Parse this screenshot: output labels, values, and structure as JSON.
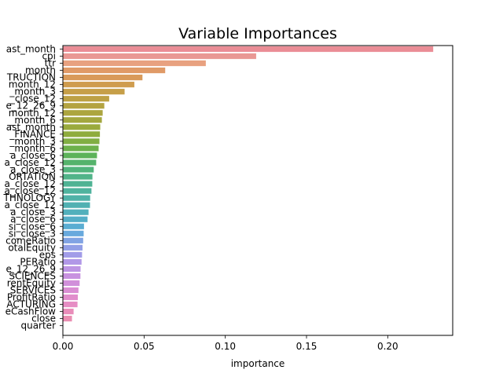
{
  "chart_data": {
    "type": "bar",
    "orientation": "horizontal",
    "title": "Variable Importances",
    "xlabel": "importance",
    "ylabel": "",
    "xlim": [
      0,
      0.24
    ],
    "xticks": [
      0.0,
      0.05,
      0.1,
      0.15,
      0.2
    ],
    "xtick_labels": [
      "0.00",
      "0.05",
      "0.10",
      "0.15",
      "0.20"
    ],
    "grid": false,
    "categories": [
      "ast_month",
      "cpi",
      "ttr",
      "month",
      "TRUCTION",
      "month_12",
      "_month_3",
      "_close_12",
      "e_12_26_9",
      "month_12",
      "_month_6",
      "ast_month",
      "_FINANCE",
      "_month_3",
      "_month_6",
      "a_close_6",
      "a_close_12",
      "a_close_3",
      "ORTATION",
      "a_close_12",
      "a_close_12",
      "THNOLOGY",
      "a_close_12",
      "a_close_3",
      "a_close_6",
      "si_close_6",
      "si_close_3",
      "comeRatio",
      "otalEquity",
      "eps",
      "PERatio",
      "e_12_26_9",
      "SCIENCES",
      "rentEquity",
      "SERVICES",
      "ProfitRatio",
      "ACTURING",
      "eCashFlow",
      "close",
      "quarter"
    ],
    "values": [
      0.228,
      0.119,
      0.088,
      0.063,
      0.049,
      0.044,
      0.038,
      0.0285,
      0.0255,
      0.0245,
      0.024,
      0.023,
      0.0228,
      0.0225,
      0.022,
      0.021,
      0.0205,
      0.019,
      0.0182,
      0.0181,
      0.0176,
      0.0168,
      0.0167,
      0.0158,
      0.0152,
      0.013,
      0.0128,
      0.0125,
      0.0121,
      0.0118,
      0.0115,
      0.0109,
      0.0108,
      0.0103,
      0.0096,
      0.0092,
      0.009,
      0.0066,
      0.0056,
      0.0
    ],
    "colors": [
      "#ea8d96",
      "#e99894",
      "#e8a180",
      "#e09a67",
      "#d99a5a",
      "#cf9c4e",
      "#c69f48",
      "#bda144",
      "#b4a341",
      "#aca53f",
      "#a3a73e",
      "#9aaa3d",
      "#8fac3d",
      "#81ae43",
      "#6db14c",
      "#5db35a",
      "#55b36c",
      "#52b47c",
      "#51b489",
      "#4fb394",
      "#4fb39e",
      "#50b2a8",
      "#51b1b2",
      "#52b0bc",
      "#55aec7",
      "#5aadd2",
      "#68a9dd",
      "#80a3e3",
      "#929fe6",
      "#a29ce8",
      "#b198e7",
      "#bd95e4",
      "#c892e0",
      "#d190da",
      "#da8ed3",
      "#e18dcc",
      "#e68dc4",
      "#e98dba",
      "#ea8db1",
      "#ea8da8"
    ]
  }
}
